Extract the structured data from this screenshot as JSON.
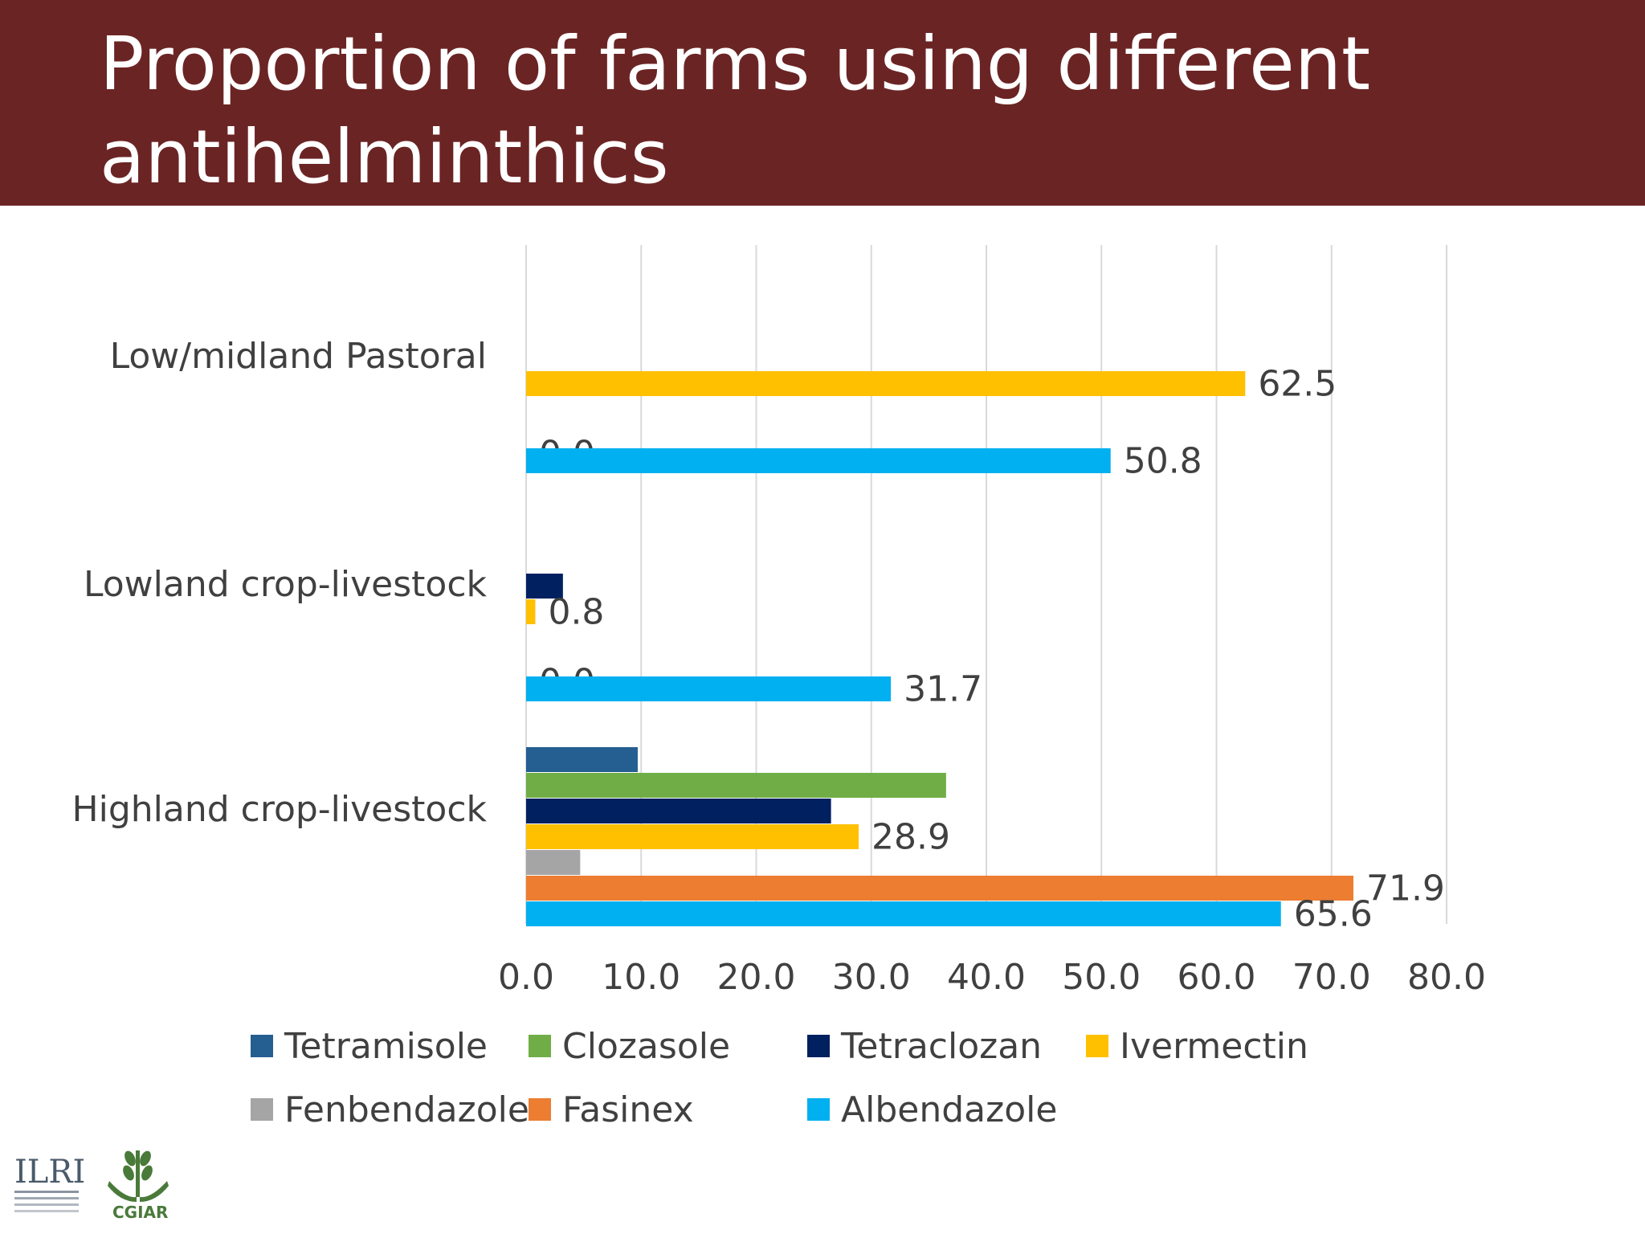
{
  "slide": {
    "title": "Proportion of farms using different antihelminthics"
  },
  "chart_data": {
    "type": "bar",
    "orientation": "horizontal",
    "categories": [
      "Low/midland Pastoral",
      "Lowland crop-livestock",
      "Highland crop-livestock"
    ],
    "xlim": [
      0,
      80
    ],
    "xticks": [
      "0.0",
      "10.0",
      "20.0",
      "30.0",
      "40.0",
      "50.0",
      "60.0",
      "70.0",
      "80.0"
    ],
    "grid": "vertical",
    "legend_position": "bottom",
    "series": [
      {
        "name": "Tetramisole",
        "color": "#255e91",
        "values": [
          0,
          0,
          9.7
        ],
        "labels": [
          "",
          "",
          ""
        ]
      },
      {
        "name": "Clozasole",
        "color": "#70ad47",
        "values": [
          0,
          0,
          36.5
        ],
        "labels": [
          "",
          "",
          ""
        ]
      },
      {
        "name": "Tetraclozan",
        "color": "#002060",
        "values": [
          0,
          3.2,
          26.5
        ],
        "labels": [
          "",
          "",
          ""
        ]
      },
      {
        "name": "Ivermectin",
        "color": "#ffc000",
        "values": [
          62.5,
          0.8,
          28.9
        ],
        "labels": [
          "62.5",
          "0.8",
          "28.9"
        ]
      },
      {
        "name": "Fenbendazole",
        "color": "#a5a5a5",
        "values": [
          0,
          0,
          4.7
        ],
        "labels": [
          "",
          "",
          ""
        ]
      },
      {
        "name": "Fasinex",
        "color": "#ed7d31",
        "values": [
          0,
          0,
          71.9
        ],
        "labels": [
          "0.0",
          "0.0",
          "71.9"
        ]
      },
      {
        "name": "Albendazole",
        "color": "#00b0f0",
        "values": [
          50.8,
          31.7,
          65.6
        ],
        "labels": [
          "50.8",
          "31.7",
          "65.6"
        ]
      }
    ]
  },
  "logos": {
    "ilri": "ILRI",
    "cgiar": "CGIAR"
  }
}
